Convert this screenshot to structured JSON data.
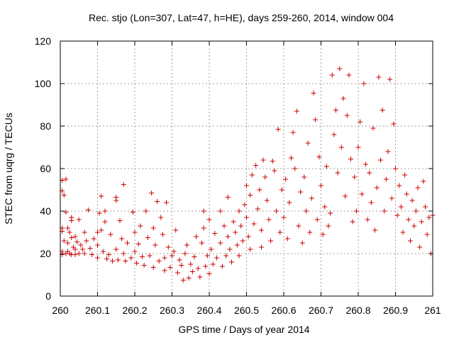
{
  "chart_data": {
    "type": "scatter",
    "title": "Rec. stjo (Lon=307, Lat=47, h=HE), days 259-260, 2014, window 004",
    "xlabel": "GPS time / Days of year 2014",
    "ylabel": "STEC from uqrg / TECUs",
    "xlim": [
      260,
      261
    ],
    "ylim": [
      0,
      120
    ],
    "xticks": [
      "260",
      "260.1",
      "260.2",
      "260.3",
      "260.4",
      "260.5",
      "260.6",
      "260.7",
      "260.8",
      "260.9",
      "261"
    ],
    "yticks": [
      "0",
      "20",
      "40",
      "60",
      "80",
      "100",
      "120"
    ],
    "grid": true,
    "marker": "+",
    "color": "#cc0000",
    "series": [
      {
        "name": "",
        "points": [
          [
            260.005,
            49.5
          ],
          [
            260.005,
            54.5
          ],
          [
            260.005,
            30.5
          ],
          [
            260.005,
            32
          ],
          [
            260.005,
            21
          ],
          [
            260.005,
            19.5
          ],
          [
            260.01,
            47.5
          ],
          [
            260.01,
            26
          ],
          [
            260.015,
            55
          ],
          [
            260.015,
            39.5
          ],
          [
            260.015,
            20
          ],
          [
            260.02,
            32
          ],
          [
            260.02,
            25
          ],
          [
            260.02,
            21
          ],
          [
            260.025,
            30
          ],
          [
            260.025,
            20
          ],
          [
            260.03,
            35.5
          ],
          [
            260.03,
            37
          ],
          [
            260.03,
            27.5
          ],
          [
            260.03,
            19.5
          ],
          [
            260.035,
            23
          ],
          [
            260.04,
            28
          ],
          [
            260.04,
            22
          ],
          [
            260.04,
            19.5
          ],
          [
            260.045,
            25.5
          ],
          [
            260.05,
            36
          ],
          [
            260.05,
            20
          ],
          [
            260.055,
            24
          ],
          [
            260.06,
            22
          ],
          [
            260.065,
            30
          ],
          [
            260.065,
            20
          ],
          [
            260.07,
            26
          ],
          [
            260.075,
            40.5
          ],
          [
            260.08,
            22.5
          ],
          [
            260.085,
            19.5
          ],
          [
            260.09,
            27
          ],
          [
            260.1,
            30
          ],
          [
            260.1,
            24
          ],
          [
            260.1,
            18
          ],
          [
            260.105,
            39
          ],
          [
            260.11,
            47
          ],
          [
            260.11,
            31
          ],
          [
            260.115,
            21
          ],
          [
            260.12,
            35
          ],
          [
            260.12,
            40
          ],
          [
            260.125,
            17.5
          ],
          [
            260.13,
            19.5
          ],
          [
            260.135,
            29
          ],
          [
            260.14,
            16.5
          ],
          [
            260.15,
            45
          ],
          [
            260.15,
            46.5
          ],
          [
            260.15,
            22
          ],
          [
            260.155,
            17
          ],
          [
            260.16,
            35.5
          ],
          [
            260.165,
            27
          ],
          [
            260.17,
            52.5
          ],
          [
            260.17,
            20
          ],
          [
            260.175,
            16.5
          ],
          [
            260.18,
            25
          ],
          [
            260.19,
            18
          ],
          [
            260.195,
            39.5
          ],
          [
            260.2,
            30
          ],
          [
            260.2,
            21
          ],
          [
            260.205,
            15.5
          ],
          [
            260.21,
            24.5
          ],
          [
            260.215,
            33
          ],
          [
            260.22,
            18.5
          ],
          [
            260.225,
            14.5
          ],
          [
            260.23,
            40
          ],
          [
            260.235,
            27.5
          ],
          [
            260.24,
            19
          ],
          [
            260.245,
            48.5
          ],
          [
            260.25,
            32
          ],
          [
            260.25,
            13.5
          ],
          [
            260.255,
            24
          ],
          [
            260.26,
            44.5
          ],
          [
            260.265,
            16.5
          ],
          [
            260.27,
            37
          ],
          [
            260.275,
            29
          ],
          [
            260.28,
            18
          ],
          [
            260.28,
            12
          ],
          [
            260.285,
            44
          ],
          [
            260.29,
            23
          ],
          [
            260.295,
            13.5
          ],
          [
            260.3,
            19
          ],
          [
            260.305,
            21
          ],
          [
            260.31,
            31
          ],
          [
            260.315,
            11
          ],
          [
            260.32,
            17
          ],
          [
            260.325,
            14.5
          ],
          [
            260.33,
            7.5
          ],
          [
            260.335,
            20
          ],
          [
            260.34,
            24
          ],
          [
            260.345,
            8.5
          ],
          [
            260.35,
            15
          ],
          [
            260.355,
            11.5
          ],
          [
            260.36,
            18.5
          ],
          [
            260.365,
            28
          ],
          [
            260.37,
            13
          ],
          [
            260.375,
            9
          ],
          [
            260.38,
            25
          ],
          [
            260.385,
            40
          ],
          [
            260.385,
            32
          ],
          [
            260.39,
            14
          ],
          [
            260.395,
            19
          ],
          [
            260.4,
            36
          ],
          [
            260.4,
            10.5
          ],
          [
            260.405,
            22
          ],
          [
            260.41,
            15
          ],
          [
            260.415,
            29.5
          ],
          [
            260.42,
            18
          ],
          [
            260.43,
            40
          ],
          [
            260.43,
            25
          ],
          [
            260.435,
            14
          ],
          [
            260.44,
            33
          ],
          [
            260.445,
            19
          ],
          [
            260.45,
            46.5
          ],
          [
            260.45,
            28
          ],
          [
            260.455,
            22
          ],
          [
            260.46,
            16
          ],
          [
            260.465,
            35
          ],
          [
            260.47,
            30
          ],
          [
            260.475,
            24
          ],
          [
            260.48,
            40
          ],
          [
            260.48,
            19
          ],
          [
            260.485,
            33
          ],
          [
            260.49,
            26
          ],
          [
            260.495,
            43
          ],
          [
            260.5,
            52
          ],
          [
            260.5,
            37
          ],
          [
            260.505,
            28
          ],
          [
            260.51,
            47.5
          ],
          [
            260.51,
            22
          ],
          [
            260.515,
            57
          ],
          [
            260.52,
            34
          ],
          [
            260.525,
            61.5
          ],
          [
            260.53,
            41
          ],
          [
            260.535,
            50
          ],
          [
            260.54,
            31
          ],
          [
            260.54,
            23
          ],
          [
            260.545,
            64
          ],
          [
            260.55,
            56
          ],
          [
            260.555,
            45
          ],
          [
            260.56,
            36
          ],
          [
            260.565,
            26
          ],
          [
            260.57,
            63.5
          ],
          [
            260.575,
            59
          ],
          [
            260.58,
            40
          ],
          [
            260.585,
            78.5
          ],
          [
            260.59,
            30
          ],
          [
            260.595,
            50
          ],
          [
            260.6,
            37
          ],
          [
            260.605,
            55
          ],
          [
            260.61,
            27
          ],
          [
            260.615,
            44
          ],
          [
            260.62,
            65
          ],
          [
            260.625,
            77
          ],
          [
            260.63,
            60
          ],
          [
            260.635,
            87
          ],
          [
            260.64,
            33
          ],
          [
            260.645,
            49
          ],
          [
            260.65,
            25
          ],
          [
            260.655,
            56
          ],
          [
            260.66,
            40
          ],
          [
            260.665,
            72
          ],
          [
            260.67,
            30
          ],
          [
            260.675,
            46
          ],
          [
            260.68,
            95.5
          ],
          [
            260.685,
            83
          ],
          [
            260.69,
            36
          ],
          [
            260.695,
            65.5
          ],
          [
            260.7,
            52
          ],
          [
            260.705,
            29
          ],
          [
            260.71,
            42
          ],
          [
            260.715,
            61
          ],
          [
            260.72,
            33
          ],
          [
            260.725,
            39
          ],
          [
            260.73,
            104
          ],
          [
            260.735,
            76
          ],
          [
            260.74,
            87.5
          ],
          [
            260.745,
            58
          ],
          [
            260.75,
            107
          ],
          [
            260.755,
            70
          ],
          [
            260.76,
            93
          ],
          [
            260.765,
            47
          ],
          [
            260.77,
            85
          ],
          [
            260.775,
            104
          ],
          [
            260.78,
            64.5
          ],
          [
            260.785,
            35
          ],
          [
            260.79,
            56
          ],
          [
            260.795,
            40
          ],
          [
            260.8,
            70
          ],
          [
            260.805,
            82
          ],
          [
            260.81,
            48
          ],
          [
            260.815,
            100
          ],
          [
            260.82,
            62
          ],
          [
            260.825,
            36
          ],
          [
            260.83,
            58
          ],
          [
            260.835,
            44
          ],
          [
            260.84,
            79
          ],
          [
            260.845,
            31
          ],
          [
            260.85,
            51
          ],
          [
            260.855,
            103
          ],
          [
            260.86,
            64
          ],
          [
            260.865,
            87.5
          ],
          [
            260.87,
            40
          ],
          [
            260.875,
            55
          ],
          [
            260.88,
            68
          ],
          [
            260.885,
            102
          ],
          [
            260.89,
            46
          ],
          [
            260.895,
            81
          ],
          [
            260.9,
            60
          ],
          [
            260.905,
            38
          ],
          [
            260.91,
            52
          ],
          [
            260.915,
            42
          ],
          [
            260.92,
            30
          ],
          [
            260.925,
            57
          ],
          [
            260.93,
            48
          ],
          [
            260.935,
            36
          ],
          [
            260.94,
            26
          ],
          [
            260.945,
            45
          ],
          [
            260.95,
            33
          ],
          [
            260.955,
            40
          ],
          [
            260.96,
            51
          ],
          [
            260.965,
            23
          ],
          [
            260.97,
            35
          ],
          [
            260.975,
            54
          ],
          [
            260.98,
            42
          ],
          [
            260.985,
            29
          ],
          [
            260.99,
            37
          ],
          [
            260.995,
            20
          ],
          [
            261.0,
            38
          ]
        ]
      }
    ]
  }
}
